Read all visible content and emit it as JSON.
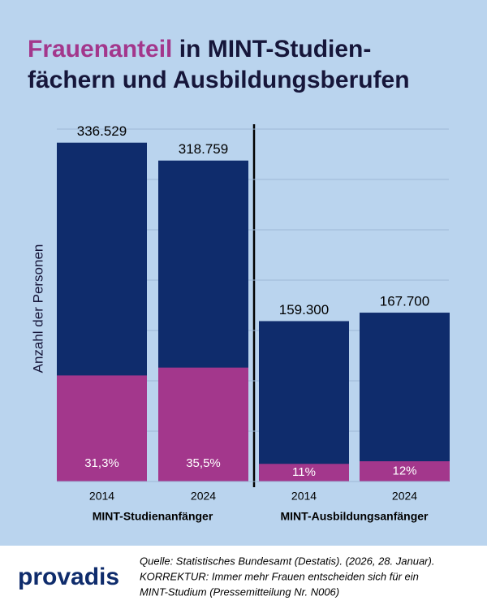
{
  "chart_data": {
    "type": "bar",
    "title": {
      "highlight": "Frauenanteil",
      "line1": "in MINT-Studien-",
      "line2": "fächern und Ausbildungsberufen"
    },
    "y_label": "Anzahl der Personen",
    "color": "#0f2c6c",
    "share_color": "#a3378c",
    "ylim": [
      0,
      350000
    ],
    "yticks": [
      0,
      50000,
      100000,
      150000,
      200000,
      250000,
      300000,
      350000
    ],
    "grid": true,
    "groups": [
      {
        "name": "MINT-Studienanfänger",
        "categories": [
          "2014",
          "2024"
        ],
        "values": [
          336529,
          318759
        ],
        "value_labels": [
          "336.529",
          "318.759"
        ],
        "shares": [
          31.3,
          35.5
        ],
        "share_labels": [
          "31,3%",
          "35,5%"
        ]
      },
      {
        "name": "MINT-Ausbildungsanfänger",
        "categories": [
          "2014",
          "2024"
        ],
        "values": [
          159300,
          167700
        ],
        "value_labels": [
          "159.300",
          "167.700"
        ],
        "shares": [
          11,
          12
        ],
        "share_labels": [
          "11%",
          "12%"
        ]
      }
    ]
  },
  "footer": {
    "logo": "provadis",
    "source": [
      "Quelle: Statistisches Bundesamt (Destatis). (2026, 28. Januar).",
      "KORREKTUR: Immer mehr Frauen entscheiden sich für ein",
      "MINT-Studium (Pressemitteilung Nr. N006)"
    ]
  }
}
